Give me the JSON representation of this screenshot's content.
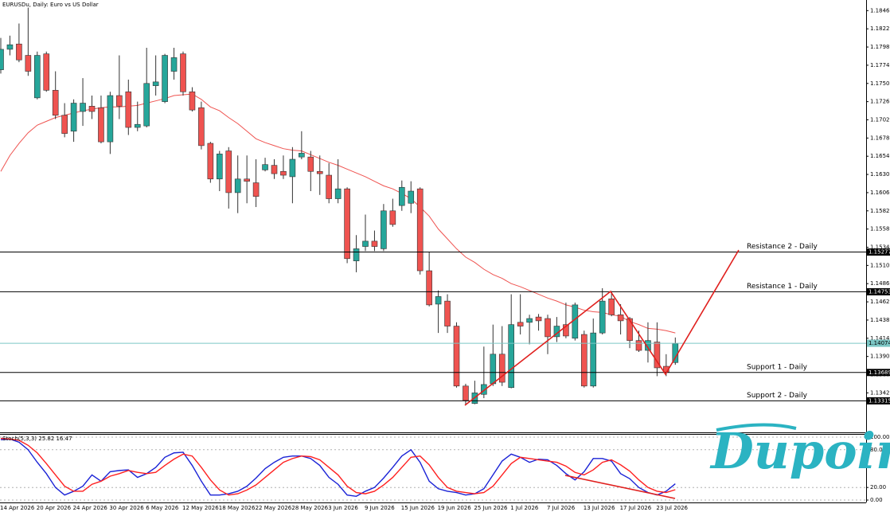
{
  "chart_data": [
    {
      "type": "candlestick",
      "title": "EURUSDu, Daily: Euro vs US Dollar",
      "categories": [
        "14 Apr 2026",
        null,
        null,
        null,
        "20 Apr 2026",
        null,
        null,
        null,
        "24 Apr 2026",
        null,
        null,
        null,
        "30 Apr 2026",
        null,
        null,
        null,
        "6 May 2026",
        null,
        null,
        null,
        "12 May 2026",
        null,
        null,
        null,
        "18 May 2026",
        null,
        null,
        null,
        "22 May 2026",
        null,
        null,
        null,
        "28 May 2026",
        null,
        null,
        null,
        "3 Jun 2026",
        null,
        null,
        null,
        "9 Jun 2026",
        null,
        null,
        null,
        "15 Jun 2026",
        null,
        null,
        null,
        "19 Jun 2026",
        null,
        null,
        null,
        "25 Jun 2026",
        null,
        null,
        null,
        "1 Jul 2026",
        null,
        null,
        null,
        "7 Jul 2026",
        null,
        null,
        null,
        "13 Jul 2026",
        null,
        null,
        null,
        "17 Jul 2026",
        null,
        null,
        null,
        "23 Jul 2026",
        null,
        null
      ],
      "open": [
        1.1768,
        1.1795,
        1.1802,
        1.1787,
        1.1731,
        1.1789,
        1.1741,
        1.1708,
        1.1687,
        1.1713,
        1.172,
        1.1718,
        1.1673,
        1.1734,
        1.1739,
        1.1692,
        1.1694,
        1.1747,
        1.1726,
        1.1766,
        1.1789,
        1.1739,
        1.1718,
        1.1671,
        1.1624,
        1.1661,
        1.1606,
        1.1624,
        1.1619,
        1.1636,
        1.1642,
        1.1634,
        1.1627,
        1.1653,
        1.1653,
        1.1634,
        1.1629,
        1.1598,
        1.1611,
        1.1516,
        1.1535,
        1.1542,
        1.1532,
        1.1582,
        1.1589,
        1.1592,
        1.1611,
        1.1503,
        1.1459,
        1.1463,
        1.143,
        1.1351,
        1.1328,
        1.134,
        1.1354,
        1.1393,
        1.1349,
        1.1435,
        1.1435,
        1.1442,
        1.144,
        1.1416,
        1.1432,
        1.1414,
        1.1419,
        1.1351,
        1.1421,
        1.1466,
        1.1445,
        1.144,
        1.1411,
        1.1398,
        1.1409,
        1.1377,
        1.1382
      ],
      "high": [
        1.181,
        1.1813,
        1.1829,
        1.185,
        1.1792,
        1.1792,
        1.1766,
        1.1724,
        1.1729,
        1.1757,
        1.1734,
        1.1734,
        1.1739,
        1.1787,
        1.1755,
        1.1726,
        1.1797,
        1.1787,
        1.1789,
        1.1797,
        1.1792,
        1.1745,
        1.1726,
        1.1673,
        1.1661,
        1.1666,
        1.1655,
        1.1655,
        1.165,
        1.1652,
        1.165,
        1.1655,
        1.1666,
        1.1687,
        1.1661,
        1.1655,
        1.1645,
        1.165,
        1.1613,
        1.155,
        1.1577,
        1.1556,
        1.1591,
        1.1598,
        1.1622,
        1.1621,
        1.1613,
        1.1528,
        1.1477,
        1.1472,
        1.1435,
        1.1354,
        1.1358,
        1.1403,
        1.1432,
        1.143,
        1.1472,
        1.1472,
        1.1445,
        1.1446,
        1.1445,
        1.1442,
        1.1461,
        1.1461,
        1.1424,
        1.144,
        1.148,
        1.1476,
        1.1459,
        1.1442,
        1.1424,
        1.1435,
        1.1435,
        1.1393,
        1.1415
      ],
      "low": [
        1.1763,
        1.1787,
        1.1778,
        1.176,
        1.1729,
        1.1739,
        1.1703,
        1.1679,
        1.1673,
        1.1694,
        1.1703,
        1.1671,
        1.1657,
        1.1703,
        1.1682,
        1.1687,
        1.1692,
        1.1734,
        1.1724,
        1.1755,
        1.1734,
        1.1713,
        1.1663,
        1.1619,
        1.1608,
        1.1585,
        1.1579,
        1.1592,
        1.1587,
        1.1634,
        1.1624,
        1.1624,
        1.1592,
        1.165,
        1.1608,
        1.1603,
        1.1592,
        1.1592,
        1.1513,
        1.1501,
        1.1529,
        1.1529,
        1.1529,
        1.1561,
        1.1582,
        1.1579,
        1.1498,
        1.1456,
        1.1421,
        1.1421,
        1.1349,
        1.1326,
        1.1327,
        1.1335,
        1.1351,
        1.1351,
        1.1348,
        1.1419,
        1.1406,
        1.1424,
        1.1393,
        1.1409,
        1.1414,
        1.1411,
        1.1349,
        1.1349,
        1.1419,
        1.1443,
        1.1419,
        1.1401,
        1.1396,
        1.1382,
        1.1364,
        1.1364,
        1.1379
      ],
      "close": [
        1.1795,
        1.1801,
        1.1781,
        1.1766,
        1.1787,
        1.1741,
        1.1708,
        1.1684,
        1.1724,
        1.1724,
        1.1713,
        1.1673,
        1.1734,
        1.172,
        1.1692,
        1.1696,
        1.175,
        1.1752,
        1.1787,
        1.1784,
        1.1739,
        1.1715,
        1.1668,
        1.1624,
        1.1657,
        1.1606,
        1.1624,
        1.1621,
        1.1601,
        1.1643,
        1.1631,
        1.1629,
        1.165,
        1.1658,
        1.1634,
        1.1631,
        1.1598,
        1.1611,
        1.1519,
        1.1532,
        1.1542,
        1.1535,
        1.1582,
        1.1564,
        1.1613,
        1.1608,
        1.1503,
        1.1458,
        1.1469,
        1.143,
        1.1351,
        1.1332,
        1.1342,
        1.1353,
        1.1393,
        1.1356,
        1.1432,
        1.143,
        1.144,
        1.1437,
        1.1416,
        1.143,
        1.1417,
        1.1458,
        1.1351,
        1.1421,
        1.1463,
        1.1445,
        1.1437,
        1.1411,
        1.1398,
        1.1411,
        1.1375,
        1.1369,
        1.1407
      ],
      "up_color": "#26a69a",
      "down_color": "#ef5350",
      "series": [
        {
          "color": "#ef5350",
          "values": [
            1.1634,
            1.1655,
            1.1671,
            1.1685,
            1.1695,
            1.17,
            1.1705,
            1.1708,
            1.1711,
            1.1714,
            1.1716,
            1.1718,
            1.1719,
            1.1719,
            1.172,
            1.1721,
            1.1724,
            1.1727,
            1.173,
            1.1734,
            1.1735,
            1.1736,
            1.1729,
            1.1719,
            1.1714,
            1.1705,
            1.1697,
            1.1687,
            1.1677,
            1.1672,
            1.1668,
            1.1664,
            1.1662,
            1.1661,
            1.1656,
            1.1651,
            1.1646,
            1.1642,
            1.1637,
            1.1632,
            1.1627,
            1.1621,
            1.1615,
            1.1611,
            1.1605,
            1.1598,
            1.1587,
            1.1575,
            1.1558,
            1.1545,
            1.1532,
            1.1521,
            1.1514,
            1.1505,
            1.1498,
            1.1493,
            1.1486,
            1.1482,
            1.1477,
            1.1472,
            1.1467,
            1.1463,
            1.1458,
            1.1455,
            1.1451,
            1.1449,
            1.1448,
            1.1445,
            1.1443,
            1.1436,
            1.1432,
            1.1427,
            1.1426,
            1.1424,
            1.1421
          ]
        }
      ],
      "ylim": [
        1.12899,
        1.186
      ],
      "yticks": [
        {
          "value": 1.1846,
          "label": "1.18460"
        },
        {
          "value": 1.1822,
          "label": "1.18220"
        },
        {
          "value": 1.1798,
          "label": "1.17980"
        },
        {
          "value": 1.1774,
          "label": "1.17740"
        },
        {
          "value": 1.175,
          "label": "1.17500"
        },
        {
          "value": 1.1726,
          "label": "1.17260"
        },
        {
          "value": 1.1702,
          "label": "1.17020"
        },
        {
          "value": 1.1678,
          "label": "1.16780"
        },
        {
          "value": 1.1654,
          "label": "1.16540"
        },
        {
          "value": 1.163,
          "label": "1.16300"
        },
        {
          "value": 1.1606,
          "label": "1.16060"
        },
        {
          "value": 1.1582,
          "label": "1.15820"
        },
        {
          "value": 1.1558,
          "label": "1.15580"
        },
        {
          "value": 1.1534,
          "label": "1.15340"
        },
        {
          "value": 1.151,
          "label": "1.15100"
        },
        {
          "value": 1.1486,
          "label": "1.14860"
        },
        {
          "value": 1.1462,
          "label": "1.14620"
        },
        {
          "value": 1.1438,
          "label": "1.14380"
        },
        {
          "value": 1.1414,
          "label": "1.14140"
        },
        {
          "value": 1.139,
          "label": "1.13900"
        },
        {
          "value": 1.1366,
          "label": "1.13660"
        },
        {
          "value": 1.1342,
          "label": "1.13420"
        }
      ],
      "levels": [
        {
          "label": "Resistance 2 - Daily",
          "value": 1.15277
        },
        {
          "label": "Resistance 1 - Daily",
          "value": 1.14753
        },
        {
          "label": "Support 1 - Daily",
          "value": 1.13689
        },
        {
          "label": "Support 2 - Daily",
          "value": 1.13315
        }
      ],
      "level_color": "#000000",
      "current_price": 1.14074,
      "current_color": "#7cc7c5"
    },
    {
      "type": "line",
      "title": "Stoch(5,3,3)",
      "series": [
        {
          "color": "#1a22d6",
          "values": [
            96,
            97,
            92,
            80,
            60,
            42,
            20,
            8,
            14,
            22,
            40,
            30,
            45,
            47,
            48,
            36,
            42,
            52,
            68,
            75,
            76,
            55,
            30,
            8,
            8,
            10,
            14,
            22,
            35,
            50,
            60,
            68,
            70,
            70,
            66,
            55,
            36,
            25,
            8,
            6,
            14,
            20,
            35,
            52,
            70,
            80,
            60,
            30,
            18,
            14,
            12,
            8,
            10,
            18,
            40,
            62,
            73,
            68,
            60,
            65,
            64,
            55,
            42,
            32,
            45,
            66,
            66,
            62,
            42,
            34,
            20,
            12,
            8,
            14,
            25.82
          ]
        },
        {
          "color": "#ff2020",
          "values": [
            98,
            97,
            95,
            87,
            75,
            58,
            40,
            22,
            14,
            14,
            25,
            30,
            38,
            42,
            47,
            44,
            42,
            44,
            55,
            65,
            73,
            70,
            52,
            32,
            16,
            8,
            10,
            16,
            24,
            36,
            48,
            60,
            66,
            70,
            69,
            64,
            52,
            40,
            22,
            12,
            10,
            14,
            24,
            36,
            52,
            68,
            70,
            56,
            36,
            20,
            14,
            12,
            10,
            12,
            22,
            40,
            58,
            68,
            66,
            64,
            62,
            60,
            54,
            44,
            40,
            48,
            60,
            64,
            56,
            46,
            32,
            20,
            14,
            12,
            16.47
          ]
        }
      ],
      "ylim": [
        0,
        100
      ],
      "yticks": [
        {
          "value": 100,
          "label": "100.00"
        },
        {
          "value": 80,
          "label": "80.00"
        },
        {
          "value": 20,
          "label": "20.00"
        },
        {
          "value": 0,
          "label": "0.00"
        }
      ],
      "grid": true
    }
  ],
  "brand": "Dupoin"
}
